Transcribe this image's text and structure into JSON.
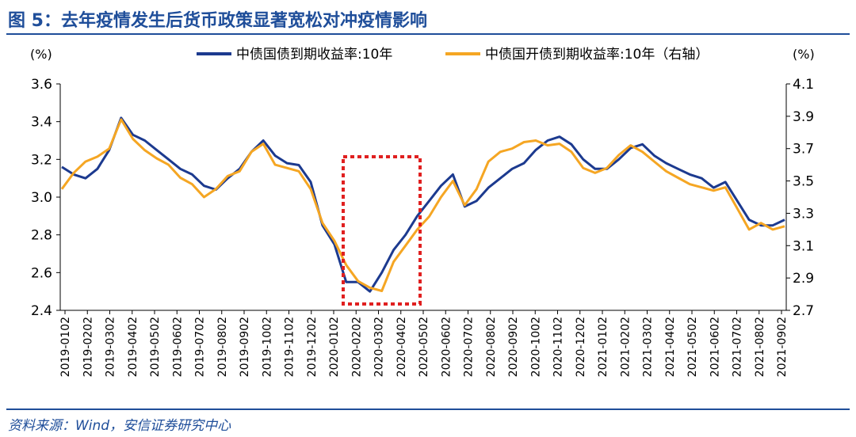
{
  "figure": {
    "title": "图 5：去年疫情发生后货币政策显著宽松对冲疫情影响",
    "source": "资料来源：Wind，安信证券研究中心"
  },
  "colors": {
    "series1": "#1c3a8f",
    "series2": "#f5a623",
    "highlight": "#e02020",
    "accent": "#1f4e9a"
  },
  "chart_data": {
    "type": "line",
    "left_unit": "(%)",
    "right_unit": "(%)",
    "y_left": {
      "min": 2.4,
      "max": 3.6,
      "ticks": [
        "2.4",
        "2.6",
        "2.8",
        "3.0",
        "3.2",
        "3.4",
        "3.6"
      ]
    },
    "y_right": {
      "min": 2.7,
      "max": 4.1,
      "ticks": [
        "2.7",
        "2.9",
        "3.1",
        "3.3",
        "3.5",
        "3.7",
        "3.9",
        "4.1"
      ]
    },
    "x_ticks": [
      "2019-0102",
      "2019-0202",
      "2019-0302",
      "2019-0402",
      "2019-0502",
      "2019-0602",
      "2019-0702",
      "2019-0802",
      "2019-0902",
      "2019-1002",
      "2019-1102",
      "2019-1202",
      "2020-0102",
      "2020-0202",
      "2020-0302",
      "2020-0402",
      "2020-0502",
      "2020-0602",
      "2020-0702",
      "2020-0802",
      "2020-0902",
      "2020-1002",
      "2020-1102",
      "2020-1202",
      "2021-0102",
      "2021-0202",
      "2021-0302",
      "2021-0402",
      "2021-0502",
      "2021-0602",
      "2021-0702",
      "2021-0802",
      "2021-0902"
    ],
    "highlight_box": {
      "from": "2020-0102",
      "to": "2020-0502",
      "style": "red dotted box"
    },
    "series": [
      {
        "name": "中债国债到期收益率:10年",
        "axis": "left",
        "values": [
          3.16,
          3.12,
          3.1,
          3.15,
          3.25,
          3.42,
          3.33,
          3.3,
          3.25,
          3.2,
          3.15,
          3.12,
          3.06,
          3.04,
          3.1,
          3.15,
          3.24,
          3.3,
          3.22,
          3.18,
          3.17,
          3.08,
          2.85,
          2.75,
          2.55,
          2.55,
          2.5,
          2.6,
          2.72,
          2.8,
          2.9,
          2.98,
          3.06,
          3.12,
          2.95,
          2.98,
          3.05,
          3.1,
          3.15,
          3.18,
          3.25,
          3.3,
          3.32,
          3.28,
          3.2,
          3.15,
          3.15,
          3.2,
          3.26,
          3.28,
          3.22,
          3.18,
          3.15,
          3.12,
          3.1,
          3.05,
          3.08,
          2.98,
          2.88,
          2.85,
          2.85,
          2.88
        ]
      },
      {
        "name": "中债国开债到期收益率:10年（右轴）",
        "axis": "right",
        "values": [
          3.45,
          3.55,
          3.62,
          3.65,
          3.7,
          3.88,
          3.76,
          3.69,
          3.64,
          3.6,
          3.52,
          3.48,
          3.4,
          3.45,
          3.53,
          3.56,
          3.68,
          3.73,
          3.6,
          3.58,
          3.56,
          3.45,
          3.24,
          3.13,
          2.98,
          2.88,
          2.84,
          2.82,
          3.0,
          3.1,
          3.2,
          3.28,
          3.4,
          3.5,
          3.35,
          3.45,
          3.62,
          3.68,
          3.7,
          3.74,
          3.75,
          3.72,
          3.73,
          3.68,
          3.58,
          3.55,
          3.58,
          3.66,
          3.72,
          3.68,
          3.62,
          3.56,
          3.52,
          3.48,
          3.46,
          3.44,
          3.46,
          3.33,
          3.2,
          3.24,
          3.2,
          3.22
        ]
      }
    ]
  }
}
